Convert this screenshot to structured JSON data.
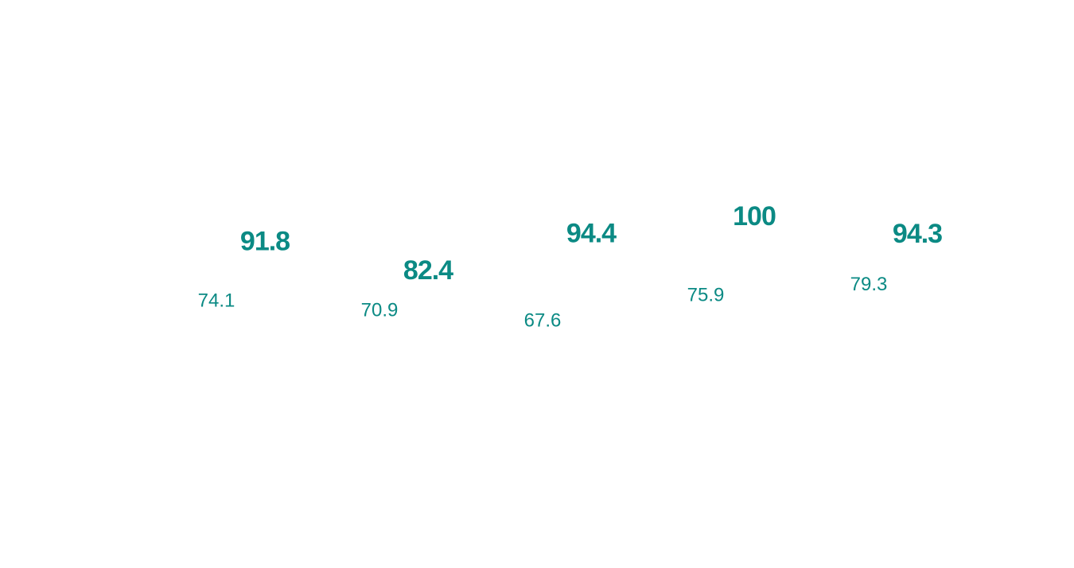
{
  "chart_data": {
    "type": "bar",
    "series": [
      {
        "color": "#0b8a84",
        "values": [
          74.1,
          70.9,
          67.6,
          75.9,
          79.3
        ]
      },
      {
        "color": "#0b8a84",
        "values": [
          91.8,
          82.4,
          94.4,
          100,
          94.3
        ]
      }
    ]
  }
}
